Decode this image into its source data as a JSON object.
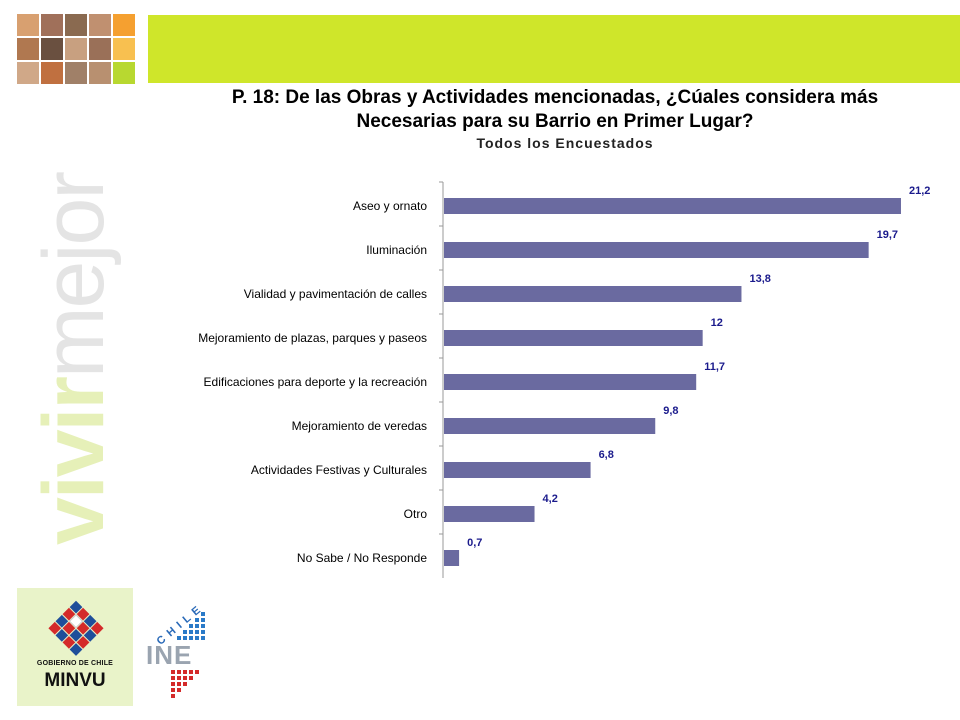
{
  "branding": {
    "tagline_part1": "vivir",
    "tagline_part2": "mejor",
    "gov_label": "GOBIERNO DE CHILE",
    "ministry": "MINVU",
    "ine_country": "CHILE",
    "ine_name": "INE",
    "colors": {
      "lime": "#cfe62a",
      "orange": "#f5a030",
      "pale_green": "#e9f3c9",
      "bar": "#6a6aa0",
      "label_blue": "#1a1a8c"
    }
  },
  "header": {
    "title_line1": "P. 18: De las Obras y Actividades mencionadas, ¿Cúales considera más",
    "title_line2": "Necesarias para su Barrio en Primer Lugar?",
    "subtitle": "Todos los Encuestados"
  },
  "chart_data": {
    "type": "bar",
    "orientation": "horizontal",
    "categories": [
      "Aseo y ornato",
      "Iluminación",
      "Vialidad y pavimentación de calles",
      "Mejoramiento de plazas, parques y paseos",
      "Edificaciones para deporte y la recreación",
      "Mejoramiento de veredas",
      "Actividades Festivas y Culturales",
      "Otro",
      "No Sabe / No Responde"
    ],
    "values": [
      21.2,
      19.7,
      13.8,
      12,
      11.7,
      9.8,
      6.8,
      4.2,
      0.7
    ],
    "value_labels": [
      "21,2",
      "19,7",
      "13,8",
      "12",
      "11,7",
      "9,8",
      "6,8",
      "4,2",
      "0,7"
    ],
    "title": "P. 18: De las Obras y Actividades mencionadas, ¿Cúales considera más Necesarias para su Barrio en Primer Lugar?",
    "subtitle": "Todos los Encuestados",
    "xlim": [
      0,
      22.5
    ],
    "grid": false,
    "legend": "none"
  }
}
